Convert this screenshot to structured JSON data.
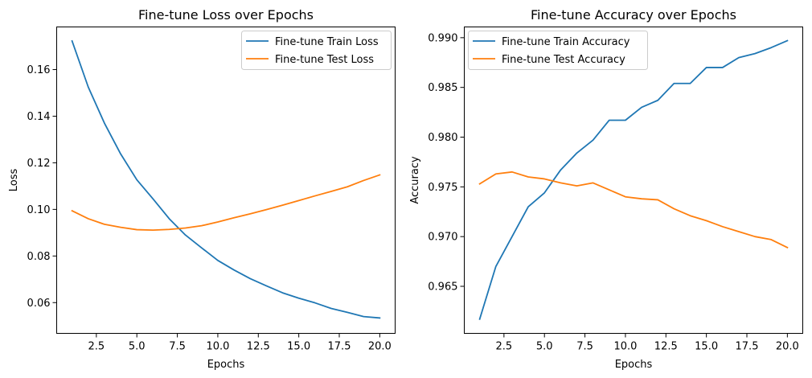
{
  "chart_data": [
    {
      "type": "line",
      "title": "Fine-tune Loss over Epochs",
      "xlabel": "Epochs",
      "ylabel": "Loss",
      "xlim": [
        0.05,
        20.95
      ],
      "ylim": [
        0.0468,
        0.1783
      ],
      "xticks": [
        2.5,
        5.0,
        7.5,
        10.0,
        12.5,
        15.0,
        17.5,
        20.0
      ],
      "xtick_labels": [
        "2.5",
        "5.0",
        "7.5",
        "10.0",
        "12.5",
        "15.0",
        "17.5",
        "20.0"
      ],
      "yticks": [
        0.06,
        0.08,
        0.1,
        0.12,
        0.14,
        0.16
      ],
      "ytick_labels": [
        "0.06",
        "0.08",
        "0.10",
        "0.12",
        "0.14",
        "0.16"
      ],
      "grid": false,
      "legend_position": "top-right",
      "x": [
        1,
        2,
        3,
        4,
        5,
        6,
        7,
        8,
        9,
        10,
        11,
        12,
        13,
        14,
        15,
        16,
        17,
        18,
        19,
        20
      ],
      "series": [
        {
          "name": "Fine-tune Train Loss",
          "color": "#1f77b4",
          "values": [
            0.1723,
            0.1525,
            0.137,
            0.1238,
            0.1127,
            0.1045,
            0.096,
            0.089,
            0.0835,
            0.0781,
            0.074,
            0.0703,
            0.0672,
            0.0642,
            0.0619,
            0.0599,
            0.0575,
            0.0558,
            0.054,
            0.0534
          ]
        },
        {
          "name": "Fine-tune Test Loss",
          "color": "#ff7f0e",
          "values": [
            0.0994,
            0.096,
            0.0936,
            0.0923,
            0.0913,
            0.0911,
            0.0914,
            0.092,
            0.093,
            0.0946,
            0.0964,
            0.0981,
            0.0999,
            0.1018,
            0.1038,
            0.1058,
            0.1077,
            0.1097,
            0.1124,
            0.1148
          ]
        }
      ]
    },
    {
      "type": "line",
      "title": "Fine-tune Accuracy over Epochs",
      "xlabel": "Epochs",
      "ylabel": "Accuracy",
      "xlim": [
        0.05,
        20.95
      ],
      "ylim": [
        0.96027,
        0.99108
      ],
      "xticks": [
        2.5,
        5.0,
        7.5,
        10.0,
        12.5,
        15.0,
        17.5,
        20.0
      ],
      "xtick_labels": [
        "2.5",
        "5.0",
        "7.5",
        "10.0",
        "12.5",
        "15.0",
        "17.5",
        "20.0"
      ],
      "yticks": [
        0.965,
        0.97,
        0.975,
        0.98,
        0.985,
        0.99
      ],
      "ytick_labels": [
        "0.965",
        "0.970",
        "0.975",
        "0.980",
        "0.985",
        "0.990"
      ],
      "grid": false,
      "legend_position": "top-left",
      "x": [
        1,
        2,
        3,
        4,
        5,
        6,
        7,
        8,
        9,
        10,
        11,
        12,
        13,
        14,
        15,
        16,
        17,
        18,
        19,
        20
      ],
      "series": [
        {
          "name": "Fine-tune Train Accuracy",
          "color": "#1f77b4",
          "values": [
            0.9617,
            0.967,
            0.97,
            0.973,
            0.9744,
            0.9767,
            0.9784,
            0.9797,
            0.9817,
            0.9817,
            0.983,
            0.9837,
            0.9854,
            0.9854,
            0.987,
            0.987,
            0.988,
            0.9884,
            0.989,
            0.9897
          ]
        },
        {
          "name": "Fine-tune Test Accuracy",
          "color": "#ff7f0e",
          "values": [
            0.9753,
            0.9763,
            0.9765,
            0.976,
            0.9758,
            0.9754,
            0.9751,
            0.9754,
            0.9747,
            0.974,
            0.9738,
            0.9737,
            0.9728,
            0.9721,
            0.9716,
            0.971,
            0.9705,
            0.97,
            0.9697,
            0.9689
          ]
        }
      ]
    }
  ]
}
